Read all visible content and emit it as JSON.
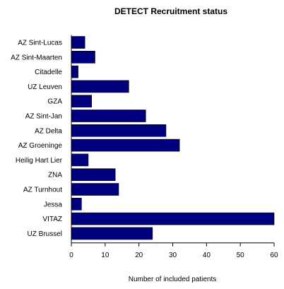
{
  "chart_data": {
    "type": "bar",
    "orientation": "horizontal",
    "title": "DETECT  Recruitment status",
    "xlabel": "Number of included patients",
    "ylabel": "",
    "categories": [
      "AZ Sint-Lucas",
      "AZ Sint-Maarten",
      "Citadelle",
      "UZ Leuven",
      "GZA",
      "AZ Sint-Jan",
      "AZ Delta",
      "AZ Groeninge",
      "Heilig Hart Lier",
      "ZNA",
      "AZ Turnhout",
      "Jessa",
      "VITAZ",
      "UZ Brussel"
    ],
    "values": [
      4,
      7,
      2,
      17,
      6,
      22,
      28,
      32,
      5,
      13,
      14,
      3,
      60,
      24
    ],
    "xlim": [
      0,
      60
    ],
    "xticks": [
      0,
      10,
      20,
      30,
      40,
      50,
      60
    ],
    "grid": false,
    "legend": "none",
    "bar_color": "#00007f"
  }
}
